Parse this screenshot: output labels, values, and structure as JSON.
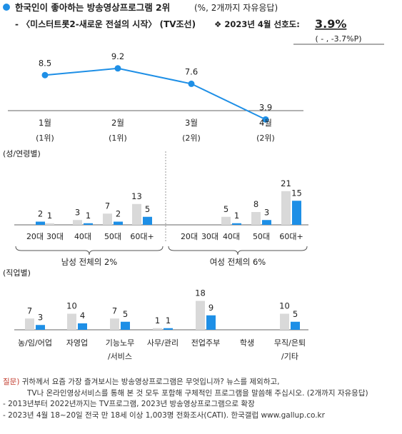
{
  "header": {
    "title": "한국인이 좋아하는 방송영상프로그램 2위",
    "title_note": "(%, 2개까지 자유응답)",
    "subtitle": "- 〈미스터트롯2-새로운 전설의 시작〉 (TV조선)",
    "preference_label": "❖  2023년 4월 선호도:",
    "preference_value": "3.9%",
    "preference_change": "( - , -3.7%P)"
  },
  "colors": {
    "blue": "#1e8fe6",
    "gray": "#d9d9d9",
    "axis": "#666666",
    "dot": "#1e8fe6",
    "footnote_label": "#c0392b"
  },
  "chart_data": [
    {
      "type": "line",
      "title": "",
      "categories": [
        "1월",
        "2월",
        "3월",
        "4월"
      ],
      "rank_labels": [
        "(1위)",
        "(1위)",
        "(2위)",
        "(2위)"
      ],
      "values": [
        8.5,
        9.2,
        7.6,
        3.9
      ],
      "value_labels": [
        "8.5",
        "9.2",
        "7.6",
        "3.9"
      ]
    },
    {
      "type": "bar",
      "section_label": "(성/연령별)",
      "groups": [
        {
          "label": "남성 전체의 2%",
          "categories": [
            "20대",
            "30대",
            "40대",
            "50대",
            "60대+"
          ],
          "series": [
            {
              "name": "",
              "color": "gray",
              "values": [
                0,
                1,
                3,
                7,
                13
              ],
              "labels": [
                "",
                "1",
                "3",
                "7",
                "13"
              ]
            },
            {
              "name": "",
              "color": "blue",
              "values": [
                2,
                0,
                1,
                2,
                5
              ],
              "labels": [
                "2",
                "",
                "1",
                "2",
                "5"
              ]
            }
          ]
        },
        {
          "label": "여성 전체의 6%",
          "categories": [
            "20대",
            "30대",
            "40대",
            "50대",
            "60대+"
          ],
          "series": [
            {
              "name": "",
              "color": "gray",
              "values": [
                0,
                0,
                5,
                8,
                21
              ],
              "labels": [
                "",
                "",
                "5",
                "8",
                "21"
              ]
            },
            {
              "name": "",
              "color": "blue",
              "values": [
                0,
                0,
                1,
                3,
                15
              ],
              "labels": [
                "",
                "",
                "1",
                "3",
                "15"
              ]
            }
          ]
        }
      ]
    },
    {
      "type": "bar",
      "section_label": "(직업별)",
      "categories": [
        "농/임/어업",
        "자영업",
        "기능노무/서비스",
        "사무/관리",
        "전업주부",
        "학생",
        "무직/은퇴/기타"
      ],
      "category_lines": [
        [
          "농/임/어업"
        ],
        [
          "자영업"
        ],
        [
          "기능노무",
          "/서비스"
        ],
        [
          "사무/관리"
        ],
        [
          "전업주부"
        ],
        [
          "학생"
        ],
        [
          "무직/은퇴",
          "/기타"
        ]
      ],
      "series": [
        {
          "name": "",
          "color": "gray",
          "values": [
            7,
            10,
            7,
            1,
            18,
            0,
            10
          ],
          "labels": [
            "7",
            "10",
            "7",
            "1",
            "18",
            "",
            "10"
          ]
        },
        {
          "name": "",
          "color": "blue",
          "values": [
            3,
            4,
            5,
            1,
            9,
            0,
            5
          ],
          "labels": [
            "3",
            "4",
            "5",
            "1",
            "9",
            "",
            "5"
          ]
        }
      ]
    }
  ],
  "footnotes": {
    "question_label": "질문)",
    "question_line1": "귀하께서 요즘 가장 즐겨보시는 방송영상프로그램은 무엇입니까? 뉴스를 제외하고,",
    "question_line2": "TV나 온라인영상서비스를 통해 본 것 모두 포함해 구체적인 프로그램을 말씀해 주십시오. (2개까지 자유응답)",
    "note1": "- 2013년부터 2022년까지는 TV프로그램, 2023년 방송영상프로그램으로 확장",
    "note2": "- 2023년 4월 18~20일 전국 만 18세 이상 1,003명 전화조사(CATI). 한국갤럽 www.gallup.co.kr"
  }
}
